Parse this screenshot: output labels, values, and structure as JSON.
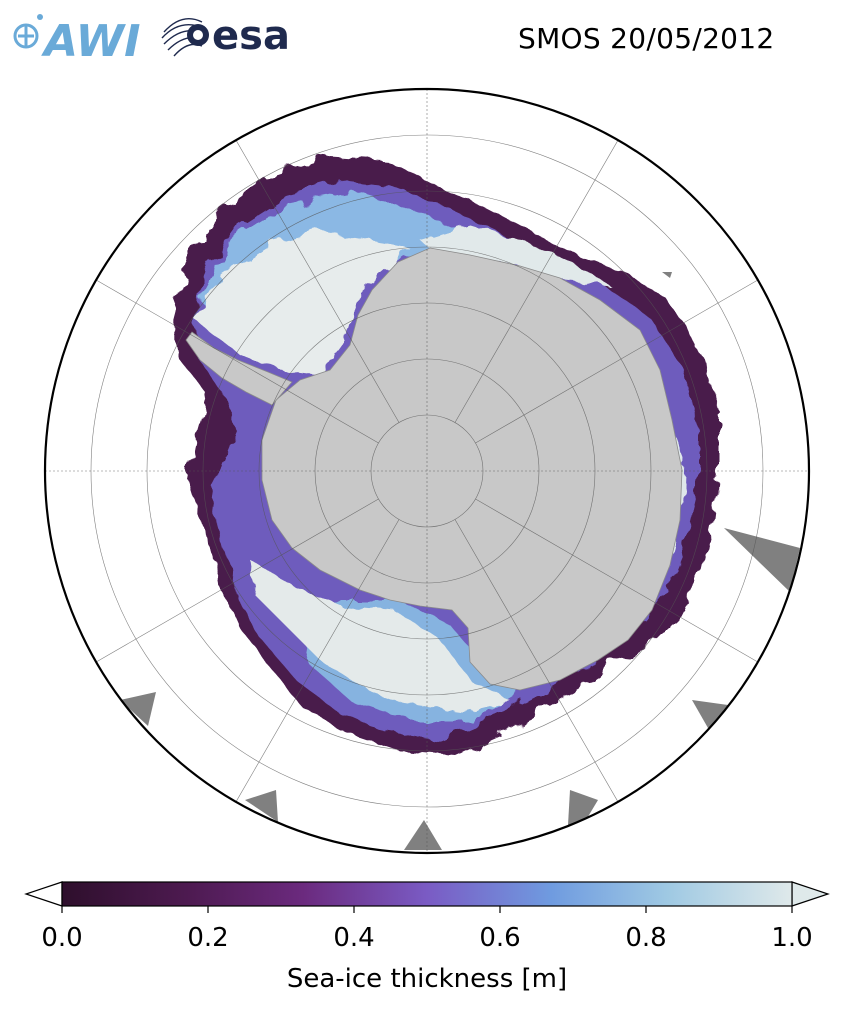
{
  "header": {
    "title": "SMOS 20/05/2012",
    "logo_awi_text": "AWI",
    "logo_esa_text": "esa"
  },
  "map": {
    "projection": "south-polar-stereographic",
    "variable": "sea-ice thickness",
    "land_color": "#c8c8c8",
    "no_data_color": "#808080",
    "grid": true
  },
  "colorbar": {
    "title": "Sea-ice thickness [m]",
    "ticks": [
      "0.0",
      "0.2",
      "0.4",
      "0.6",
      "0.8",
      "1.0"
    ],
    "range": [
      0.0,
      1.0
    ],
    "extend": "both",
    "colormap_stops": [
      "#2e0f2c",
      "#4d1a50",
      "#6b2a7e",
      "#7a5bc4",
      "#6f9be0",
      "#9fc9e3",
      "#dfe9ea"
    ]
  }
}
